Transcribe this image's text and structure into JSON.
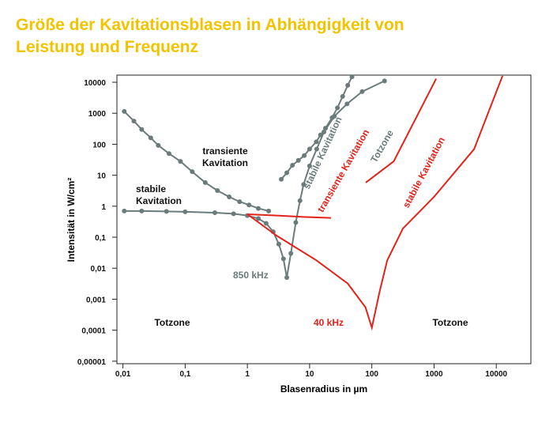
{
  "chart_data": {
    "type": "line",
    "title": "Größe der Kavitationsblasen in Abhängigkeit von",
    "subtitle": "Leistung und Frequenz",
    "title_color": "#f2c400",
    "x_label": "Blasenradius in µm",
    "y_label": "Intensität in W/cm²",
    "xscale": "log",
    "yscale": "log",
    "xlim": [
      0.008,
      36000
    ],
    "ylim": [
      8.3e-06,
      17000
    ],
    "xticks": [
      {
        "value": 0.01,
        "label": "0,01"
      },
      {
        "value": 0.1,
        "label": "0,1"
      },
      1,
      10,
      100,
      1000,
      10000
    ],
    "yticks": [
      {
        "value": 1e-05,
        "label": "0,00001"
      },
      {
        "value": 0.0001,
        "label": "0,0001"
      },
      {
        "value": 0.001,
        "label": "0,001"
      },
      {
        "value": 0.01,
        "label": "0,01"
      },
      {
        "value": 0.1,
        "label": "0,1"
      },
      1,
      10,
      100,
      1000,
      10000
    ],
    "series": [
      {
        "color": "#6b7b7b",
        "markers": true,
        "x": [
          0.0105,
          0.02,
          0.05,
          0.1,
          0.3,
          0.6,
          1,
          1.5,
          2,
          2.6,
          3.2,
          3.8,
          4.3,
          5,
          6,
          7,
          8,
          10,
          13,
          17,
          25,
          40,
          70,
          160
        ],
        "values": [
          0.7,
          0.7,
          0.68,
          0.66,
          0.62,
          0.57,
          0.5,
          0.4,
          0.28,
          0.15,
          0.06,
          0.02,
          0.005,
          0.03,
          0.3,
          1.5,
          5,
          20,
          70,
          250,
          800,
          2000,
          5000,
          11000
        ]
      },
      {
        "color": "#6b7b7b",
        "markers": true,
        "x": [
          0.0105,
          0.015,
          0.02,
          0.028,
          0.037,
          0.055,
          0.084,
          0.13,
          0.21,
          0.33,
          0.51,
          0.75,
          1.06,
          1.5,
          2.2
        ],
        "values": [
          1150,
          560,
          300,
          160,
          92,
          50,
          28,
          13,
          5.8,
          3.2,
          2,
          1.4,
          1.1,
          0.85,
          0.7
        ]
      },
      {
        "color": "#6b7b7b",
        "markers": true,
        "x": [
          3.5,
          4.3,
          5.3,
          6.6,
          8.2,
          10,
          12.8,
          15,
          18,
          23,
          28,
          34,
          41,
          48
        ],
        "values": [
          7.4,
          12,
          21,
          30,
          43,
          70,
          120,
          200,
          330,
          720,
          1500,
          3500,
          8000,
          15000
        ]
      },
      {
        "color": "#e2231a",
        "markers": false,
        "x": [
          1,
          3,
          8,
          22
        ],
        "values": [
          0.55,
          0.5,
          0.45,
          0.42
        ]
      },
      {
        "color": "#e2231a",
        "markers": false,
        "x": [
          1,
          3,
          12.8,
          41,
          79,
          100,
          133,
          177,
          316,
          1000,
          4400,
          12600
        ],
        "values": [
          0.55,
          0.11,
          0.018,
          0.0032,
          0.00055,
          0.00012,
          0.0017,
          0.018,
          0.19,
          2,
          69,
          16000
        ]
      },
      {
        "color": "#e2231a",
        "markers": false,
        "x": [
          80,
          225,
          1080
        ],
        "values": [
          5.8,
          28,
          13000
        ]
      }
    ],
    "annotations": [
      {
        "text": "transiente",
        "color": "#111111"
      },
      {
        "text": "Kavitation",
        "color": "#111111"
      },
      {
        "text": "stabile",
        "color": "#111111"
      },
      {
        "text": "Kavitation",
        "color": "#111111"
      },
      {
        "text": "850 kHz",
        "color": "#6b7b7b"
      },
      {
        "text": "stabile Kavitation",
        "color": "#6b7b7b"
      },
      {
        "text": "transiente Kavitation",
        "color": "#e2231a"
      },
      {
        "text": "Totzone",
        "color": "#6b7b7b"
      },
      {
        "text": "stabile Kavitation",
        "color": "#e2231a"
      },
      {
        "text": "Totzone",
        "color": "#111111"
      },
      {
        "text": "40 kHz",
        "color": "#e2231a"
      },
      {
        "text": "Totzone",
        "color": "#111111"
      }
    ]
  }
}
